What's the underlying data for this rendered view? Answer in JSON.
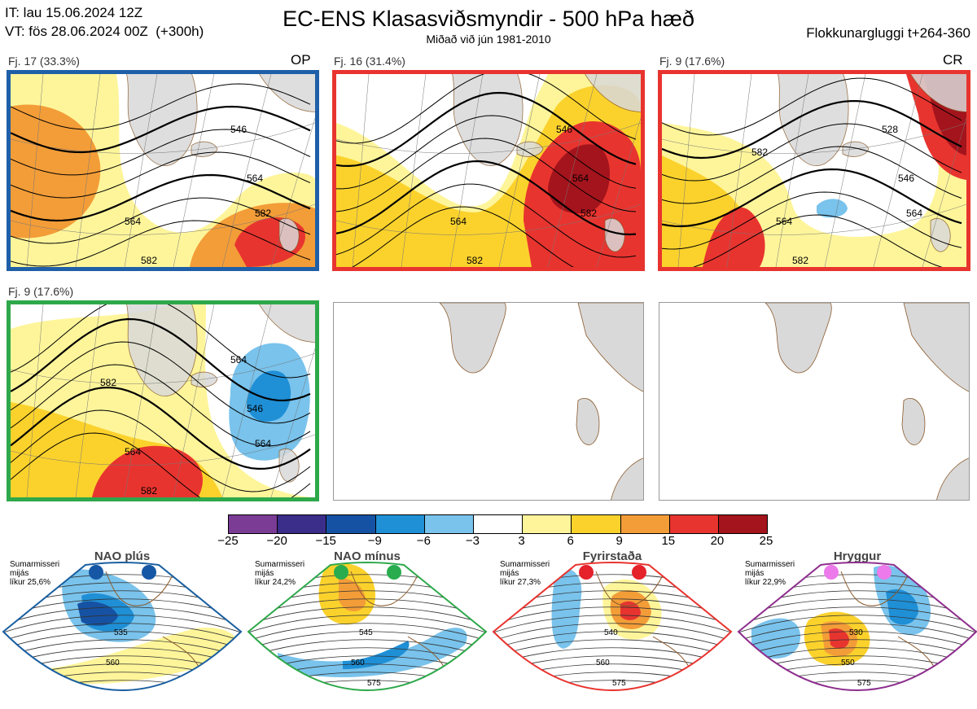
{
  "header": {
    "init_time": "IT: lau 15.06.2024 12Z",
    "valid_time": "VT: fös 28.06.2024 00Z  (+300h)",
    "title": "EC-ENS Klasasviðsmyndir - 500 hPa hæð",
    "subtitle": "Miðað við jún 1981-2010",
    "window": "Flokkunargluggi t+264-360"
  },
  "panels": [
    {
      "label": "Fj. 17 (33.3%)",
      "tag": "OP",
      "regime": "NAO plús",
      "border": "#1f5fa8",
      "contours": [
        "546",
        "564",
        "564",
        "582",
        "582"
      ]
    },
    {
      "label": "Fj. 16 (31.4%)",
      "tag": "",
      "regime": "Fyrirstaða",
      "border": "#e8342f",
      "contours": [
        "546",
        "564",
        "564",
        "582",
        "582"
      ]
    },
    {
      "label": "Fj. 9 (17.6%)",
      "tag": "CR",
      "regime": "Fyrirstaða",
      "border": "#e8342f",
      "contours": [
        "528",
        "546",
        "564",
        "564",
        "582",
        "582"
      ]
    },
    {
      "label": "Fj. 9 (17.6%)",
      "tag": "",
      "regime": "NAO mínus",
      "border": "#2ea84a",
      "contours": [
        "564",
        "546",
        "564",
        "564",
        "582",
        "582"
      ]
    }
  ],
  "colorbar": {
    "colors": [
      "#7b3c96",
      "#3b2d8a",
      "#1652a3",
      "#1f8fd6",
      "#79c3ec",
      "#ffffff",
      "#fef59a",
      "#fbd22c",
      "#f39d38",
      "#e8342f",
      "#a4141c"
    ],
    "ticks": [
      "−25",
      "−20",
      "−15",
      "−9",
      "−6",
      "−3",
      "3",
      "6",
      "9",
      "15",
      "20",
      "25"
    ]
  },
  "regimes": [
    {
      "title": "NAO plús",
      "note": "Sumarmisseri\nmijás\nlíkur 25,6%",
      "color": "#1a5fa0",
      "dot": "#1657a5",
      "contours": [
        "535",
        "560"
      ]
    },
    {
      "title": "NAO mínus",
      "note": "Sumarmisseri\nmijás\nlíkur 24,2%",
      "color": "#2ea84a",
      "dot": "#28ac4d",
      "contours": [
        "545",
        "560",
        "575"
      ]
    },
    {
      "title": "Fyrirstaða",
      "note": "Sumarmisseri\nmijás\nlíkur 27,3%",
      "color": "#e8342f",
      "dot": "#e5212a",
      "contours": [
        "540",
        "560",
        "575"
      ]
    },
    {
      "title": "Hryggur",
      "note": "Sumarmisseri\nmijás\nlíkur 22,9%",
      "color": "#8e2f8e",
      "dot": "#ec7aea",
      "contours": [
        "530",
        "550",
        "575"
      ]
    }
  ]
}
